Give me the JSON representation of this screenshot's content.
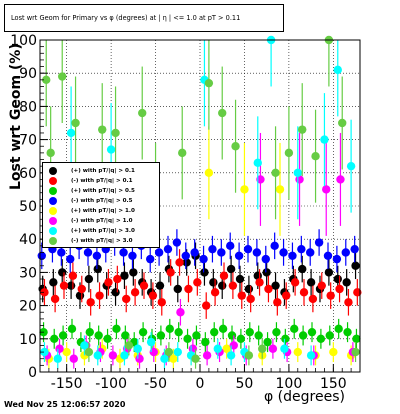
{
  "footer_text": "Wed Nov 25 12:06:57 2020",
  "chart_data": {
    "type": "scatter",
    "title": "Lost wrt Geom for Primary vs φ (degrees) at | η | <= 1.0 at pT > 0.11",
    "xlabel": "φ (degrees)",
    "ylabel": "Lost wrt Geom (%)",
    "xlim": [
      -180,
      180
    ],
    "ylim": [
      0,
      100
    ],
    "x_ticks": [
      "-150",
      "-100",
      "-50",
      "0",
      "50",
      "100",
      "150"
    ],
    "y_ticks": [
      "0",
      "10",
      "20",
      "30",
      "40",
      "50",
      "60",
      "70",
      "80",
      "90",
      "100"
    ],
    "grid": true,
    "legend_position": "middle-left",
    "series": [
      {
        "name": "(+) with pT/|q| > 0.1",
        "color": "#000000",
        "x": [
          -177,
          -165,
          -155,
          -145,
          -135,
          -125,
          -115,
          -105,
          -95,
          -85,
          -75,
          -65,
          -55,
          -45,
          -35,
          -25,
          -15,
          -5,
          5,
          15,
          25,
          35,
          45,
          55,
          65,
          75,
          85,
          95,
          105,
          115,
          125,
          135,
          145,
          155,
          165,
          175
        ],
        "y": [
          25,
          27,
          30,
          26,
          23,
          28,
          31,
          26,
          24,
          29,
          30,
          27,
          24,
          26,
          31,
          25,
          33,
          35,
          30,
          27,
          26,
          31,
          28,
          25,
          29,
          30,
          26,
          24,
          28,
          31,
          27,
          25,
          30,
          28,
          27,
          32
        ]
      },
      {
        "name": "(-) with pT/|q| > 0.1",
        "color": "#ff0000",
        "x": [
          -175,
          -163,
          -153,
          -143,
          -133,
          -123,
          -113,
          -103,
          -93,
          -83,
          -73,
          -63,
          -53,
          -43,
          -33,
          -23,
          -13,
          -3,
          7,
          17,
          27,
          37,
          47,
          57,
          67,
          77,
          87,
          97,
          107,
          117,
          127,
          137,
          147,
          157,
          167,
          177
        ],
        "y": [
          24,
          22,
          26,
          29,
          25,
          21,
          23,
          27,
          28,
          22,
          24,
          26,
          23,
          21,
          30,
          33,
          25,
          27,
          20,
          24,
          29,
          26,
          23,
          22,
          27,
          25,
          21,
          23,
          27,
          24,
          22,
          26,
          23,
          25,
          21,
          24
        ]
      },
      {
        "name": "(+) with pT/|q| > 0.5",
        "color": "#00cc00",
        "x": [
          -176,
          -164,
          -154,
          -144,
          -134,
          -124,
          -114,
          -104,
          -94,
          -84,
          -74,
          -64,
          -54,
          -44,
          -34,
          -24,
          -14,
          -4,
          6,
          16,
          26,
          36,
          46,
          56,
          66,
          76,
          86,
          96,
          106,
          116,
          126,
          136,
          146,
          156,
          166,
          176
        ],
        "y": [
          12,
          10,
          11,
          13,
          9,
          12,
          11,
          10,
          13,
          11,
          9,
          12,
          10,
          11,
          13,
          12,
          10,
          11,
          9,
          12,
          13,
          11,
          10,
          12,
          11,
          9,
          12,
          10,
          13,
          11,
          12,
          10,
          11,
          13,
          12,
          10
        ]
      },
      {
        "name": "(-) with pT/|q| > 0.5",
        "color": "#0000ff",
        "x": [
          -178,
          -166,
          -156,
          -146,
          -136,
          -126,
          -116,
          -106,
          -96,
          -86,
          -76,
          -66,
          -56,
          -46,
          -36,
          -26,
          -16,
          -6,
          4,
          14,
          24,
          34,
          44,
          54,
          64,
          74,
          84,
          94,
          104,
          114,
          124,
          134,
          144,
          154,
          164,
          174
        ],
        "y": [
          35,
          37,
          36,
          34,
          38,
          36,
          35,
          37,
          39,
          36,
          35,
          38,
          34,
          36,
          37,
          39,
          35,
          36,
          34,
          37,
          36,
          38,
          35,
          37,
          36,
          34,
          38,
          36,
          35,
          37,
          36,
          39,
          35,
          34,
          36,
          37
        ]
      },
      {
        "name": "(+) with pT/|q| > 1.0",
        "color": "#ffff00",
        "x": [
          -170,
          -150,
          -130,
          -110,
          -90,
          -70,
          -50,
          -30,
          -10,
          10,
          30,
          50,
          70,
          90,
          110,
          130,
          150,
          170
        ],
        "y": [
          4,
          6,
          5,
          7,
          4,
          5,
          6,
          4,
          5,
          60,
          7,
          55,
          5,
          55,
          6,
          5,
          6,
          5
        ]
      },
      {
        "name": "(-) with pT/|q| > 1.0",
        "color": "#ff00ff",
        "x": [
          -172,
          -158,
          -142,
          -128,
          -112,
          -98,
          -82,
          -68,
          -52,
          -38,
          -22,
          -8,
          8,
          22,
          38,
          52,
          68,
          82,
          98,
          112,
          128,
          142,
          158,
          172
        ],
        "y": [
          5,
          7,
          4,
          8,
          6,
          5,
          7,
          4,
          6,
          5,
          18,
          7,
          5,
          6,
          8,
          5,
          58,
          7,
          6,
          58,
          5,
          55,
          58,
          6
        ]
      },
      {
        "name": "(+) with pT/|q| > 3.0",
        "color": "#00ffff",
        "x": [
          -175,
          -160,
          -145,
          -130,
          -115,
          -100,
          -85,
          -70,
          -55,
          -40,
          -25,
          -10,
          5,
          20,
          35,
          50,
          65,
          80,
          95,
          110,
          125,
          140,
          155,
          170
        ],
        "y": [
          6,
          4,
          72,
          8,
          5,
          67,
          5,
          7,
          9,
          4,
          6,
          5,
          88,
          7,
          5,
          6,
          63,
          100,
          7,
          60,
          5,
          70,
          91,
          62
        ]
      },
      {
        "name": "(-) with pT/|q| > 3.0",
        "color": "#66cc44",
        "x": [
          -173,
          -168,
          -155,
          -140,
          -125,
          -110,
          -95,
          -80,
          -65,
          -50,
          -35,
          -20,
          -5,
          10,
          25,
          40,
          55,
          70,
          85,
          100,
          115,
          130,
          145,
          160,
          175
        ],
        "y": [
          88,
          66,
          89,
          75,
          6,
          73,
          72,
          8,
          78,
          55,
          6,
          66,
          4,
          87,
          78,
          68,
          5,
          7,
          60,
          66,
          73,
          65,
          100,
          75,
          6
        ]
      }
    ]
  }
}
